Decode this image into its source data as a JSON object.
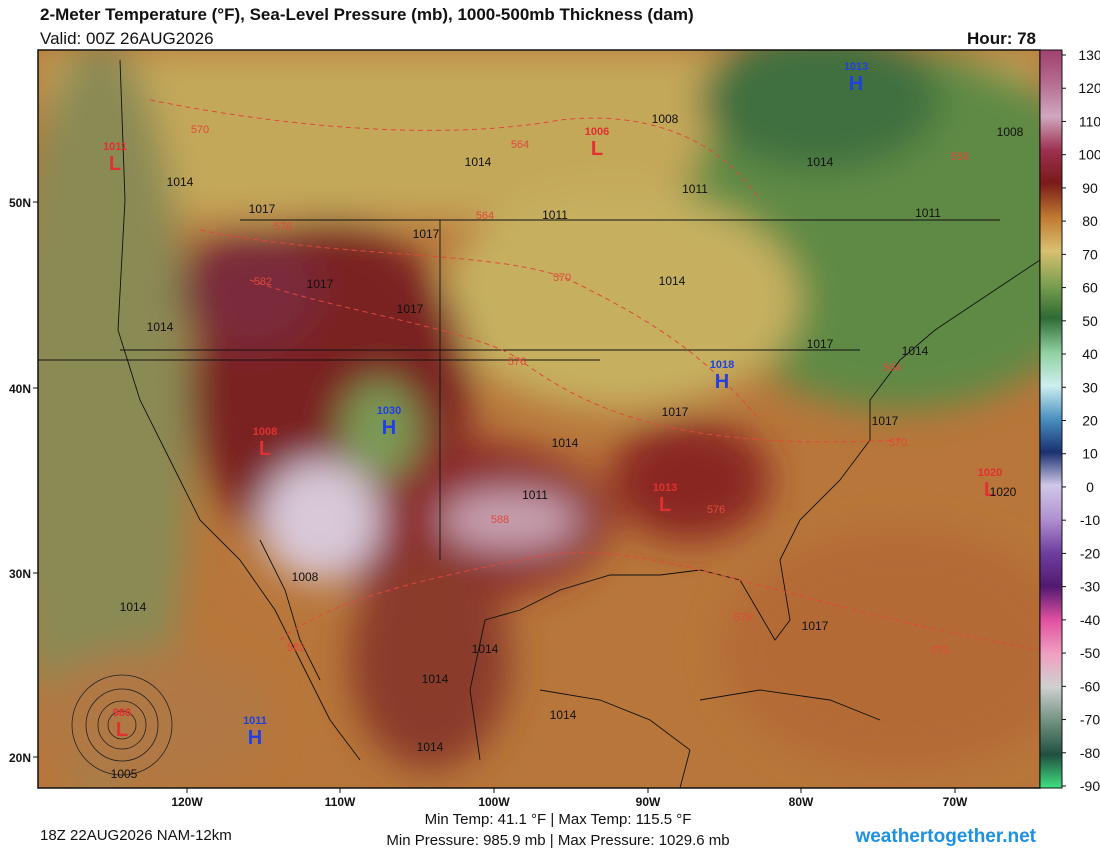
{
  "header": {
    "title": "2-Meter Temperature (°F), Sea-Level Pressure (mb), 1000-500mb Thickness (dam)",
    "valid": "Valid: 00Z 26AUG2026",
    "hour": "Hour: 78"
  },
  "colorbar": {
    "ticks": [
      130,
      120,
      110,
      100,
      90,
      80,
      70,
      60,
      50,
      40,
      30,
      20,
      10,
      0,
      -10,
      -20,
      -30,
      -40,
      -50,
      -60,
      -70,
      -80,
      -90
    ]
  },
  "map": {
    "lat_labels": [
      "50N",
      "40N",
      "30N",
      "20N"
    ],
    "lon_labels": [
      "120W",
      "110W",
      "100W",
      "90W",
      "80W",
      "70W"
    ],
    "pressure_centers": [
      {
        "letter": "L",
        "value": 1011
      },
      {
        "letter": "L",
        "value": 1006
      },
      {
        "letter": "H",
        "value": 1013
      },
      {
        "letter": "H",
        "value": 1018
      },
      {
        "letter": "H",
        "value": 1030
      },
      {
        "letter": "L",
        "value": 1008
      },
      {
        "letter": "L",
        "value": 1013
      },
      {
        "letter": "L",
        "value": 1020
      },
      {
        "letter": "H",
        "value": 1011
      },
      {
        "letter": "L",
        "value": 986
      }
    ],
    "isobar_labels": [
      1008,
      1011,
      1014,
      1017,
      1017,
      1014,
      1017,
      1017,
      1014,
      1017,
      1014,
      1017,
      1017,
      1014,
      1011,
      1014,
      1008,
      1014,
      1014,
      1014,
      1014,
      1005,
      1017,
      1020,
      1011,
      1014,
      1008,
      1014,
      1011
    ],
    "thickness_labels": [
      570,
      564,
      576,
      564,
      570,
      582,
      576,
      558,
      564,
      570,
      576,
      576,
      582,
      570,
      588
    ]
  },
  "footer": {
    "run": "18Z 22AUG2026 NAM-12km",
    "temp_stats": "Min Temp:  41.1 °F | Max Temp: 115.5 °F",
    "pressure_stats": "Min Pressure: 985.9 mb | Max Pressure: 1029.6 mb",
    "site": "weathertogether.net"
  }
}
